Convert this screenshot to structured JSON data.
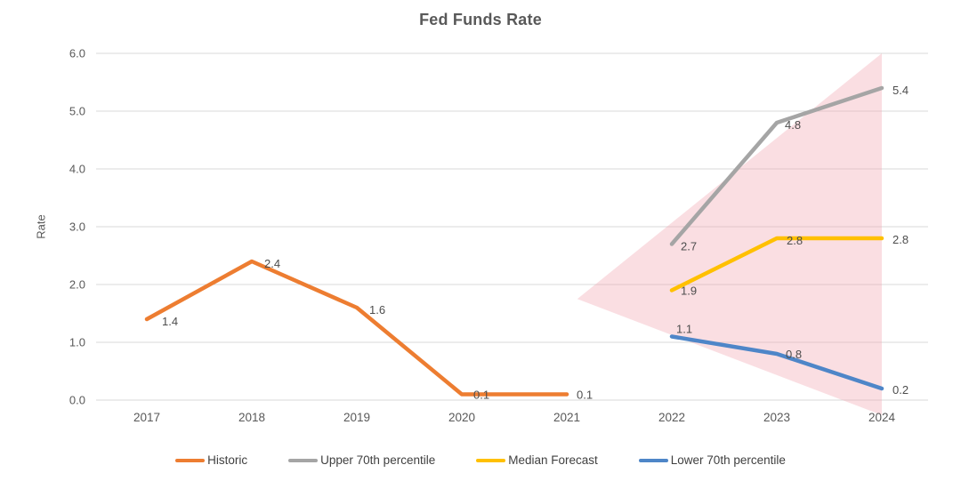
{
  "chart_data": {
    "type": "line",
    "title": "Fed Funds Rate",
    "xlabel": "",
    "ylabel": "Rate",
    "ylim": [
      0.0,
      6.0
    ],
    "ytick_step": 1.0,
    "ytick_format_decimals": 1,
    "grid": "horizontal",
    "legend_position": "bottom",
    "categories": [
      2017,
      2018,
      2019,
      2020,
      2021,
      2022,
      2023,
      2024
    ],
    "series": [
      {
        "name": "Historic",
        "color": "#ED7D31",
        "x": [
          2017,
          2018,
          2019,
          2020,
          2021
        ],
        "values": [
          1.4,
          2.4,
          1.6,
          0.1,
          0.1
        ],
        "label_offsets": [
          [
            17,
            7
          ],
          [
            14,
            7
          ],
          [
            14,
            7
          ],
          [
            13,
            5
          ],
          [
            11,
            5
          ]
        ]
      },
      {
        "name": "Upper 70th percentile",
        "color": "#A5A5A5",
        "x": [
          2022,
          2023,
          2024
        ],
        "values": [
          2.7,
          4.8,
          5.4
        ],
        "label_offsets": [
          [
            10,
            7
          ],
          [
            9,
            7
          ],
          [
            12,
            7
          ]
        ]
      },
      {
        "name": "Median Forecast",
        "color": "#FFC000",
        "x": [
          2022,
          2023,
          2024
        ],
        "values": [
          1.9,
          2.8,
          2.8
        ],
        "label_offsets": [
          [
            10,
            5
          ],
          [
            11,
            7
          ],
          [
            12,
            6
          ]
        ]
      },
      {
        "name": "Lower 70th percentile",
        "color": "#4E86C8",
        "x": [
          2022,
          2023,
          2024
        ],
        "values": [
          1.1,
          0.8,
          0.2
        ],
        "label_offsets": [
          [
            5,
            -4
          ],
          [
            10,
            5
          ],
          [
            12,
            6
          ]
        ]
      }
    ],
    "fan_region": {
      "description": "forecast range shading",
      "color": "#F1A0AC",
      "opacity": 0.35,
      "points": [
        [
          2021.1,
          1.75
        ],
        [
          2024,
          6.0
        ],
        [
          2024,
          -0.26
        ]
      ]
    },
    "styles": {
      "grid_color": "#D9D9D9",
      "tick_color": "#595959",
      "data_label_color": "#4D4D4D",
      "title_color": "#595959"
    }
  }
}
